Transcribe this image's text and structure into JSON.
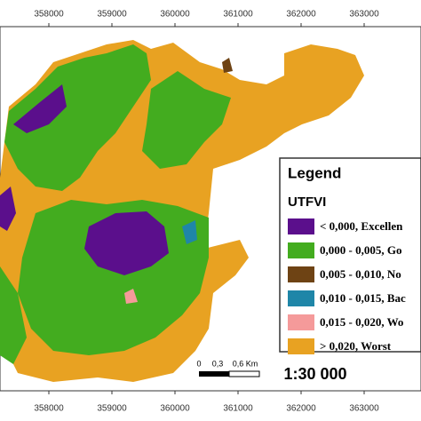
{
  "top_axis": [
    "358000",
    "359000",
    "360000",
    "361000",
    "362000",
    "363000"
  ],
  "bottom_axis": [
    "358000",
    "359000",
    "360000",
    "361000",
    "362000",
    "363000"
  ],
  "legend": {
    "title": "Legend",
    "subtitle": "UTFVI",
    "items": [
      {
        "label": "< 0,000, Excellen",
        "color": "#5b0f8c"
      },
      {
        "label": "0,000 - 0,005, Go",
        "color": "#43ac1f"
      },
      {
        "label": "0,005 - 0,010, No",
        "color": "#6e4314"
      },
      {
        "label": "0,010 - 0,015, Bac",
        "color": "#1f86a8"
      },
      {
        "label": "0,015 - 0,020, Wo",
        "color": "#f59a9a"
      },
      {
        "label": "> 0,020, Worst",
        "color": "#e8a222"
      }
    ]
  },
  "scale_bar": {
    "labels": [
      "0",
      "0,3",
      "0,6 Km"
    ],
    "ratio": "1:30 000"
  }
}
